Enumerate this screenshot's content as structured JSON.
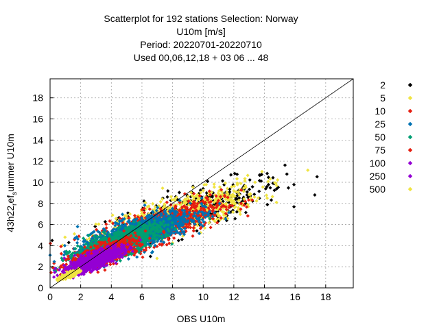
{
  "chart_data": {
    "type": "scatter",
    "title_lines": [
      "Scatterplot for  192 stations Selection: Norway",
      "U10m [m/s]",
      "Period: 20220701-20220710",
      "Used  00,06,12,18 + 03 06 ... 48"
    ],
    "xlabel": "OBS U10m",
    "ylabel_parts": {
      "base": "43h22",
      "sub1": "r",
      "mid": "ef",
      "sub2": "s",
      "tail": "ummer U10m"
    },
    "xlim": [
      0,
      19.8
    ],
    "ylim": [
      0,
      19.8
    ],
    "x_ticks": [
      "0",
      "2",
      "4",
      "6",
      "8",
      "10",
      "12",
      "14",
      "16",
      "18"
    ],
    "y_ticks": [
      "0",
      "2",
      "4",
      "6",
      "8",
      "10",
      "12",
      "14",
      "16",
      "18"
    ],
    "grid": true,
    "diagonal_line": true,
    "legend_position": "right",
    "legend": [
      {
        "label": "2",
        "color": "#000000"
      },
      {
        "label": "5",
        "color": "#f0e442"
      },
      {
        "label": "10",
        "color": "#e51e10"
      },
      {
        "label": "25",
        "color": "#0072b2"
      },
      {
        "label": "50",
        "color": "#009e73"
      },
      {
        "label": "75",
        "color": "#e51e10"
      },
      {
        "label": "100",
        "color": "#9400d3"
      },
      {
        "label": "250",
        "color": "#9400d3"
      },
      {
        "label": "500",
        "color": "#f0e442"
      }
    ],
    "density_layers": [
      {
        "level": "2",
        "color": "#000000",
        "cx": 9.5,
        "cy": 7.5,
        "spread_x": 5.2,
        "spread_y": 3.6,
        "count": 320
      },
      {
        "level": "5",
        "color": "#f0e442",
        "cx": 8.5,
        "cy": 7.0,
        "spread_x": 4.8,
        "spread_y": 3.3,
        "count": 620
      },
      {
        "level": "10",
        "color": "#e51e10",
        "cx": 7.0,
        "cy": 5.8,
        "spread_x": 3.8,
        "spread_y": 2.9,
        "count": 900
      },
      {
        "level": "25",
        "color": "#0072b2",
        "cx": 5.5,
        "cy": 5.0,
        "spread_x": 3.4,
        "spread_y": 2.6,
        "count": 1300
      },
      {
        "level": "50",
        "color": "#009e73",
        "cx": 4.3,
        "cy": 4.1,
        "spread_x": 2.6,
        "spread_y": 2.1,
        "count": 1100
      },
      {
        "level": "75",
        "color": "#e51e10",
        "cx": 3.5,
        "cy": 3.2,
        "spread_x": 2.0,
        "spread_y": 1.7,
        "count": 800
      },
      {
        "level": "100",
        "color": "#9400d3",
        "cx": 3.0,
        "cy": 2.7,
        "spread_x": 1.6,
        "spread_y": 1.3,
        "count": 700
      },
      {
        "level": "250",
        "color": "#9400d3",
        "cx": 2.3,
        "cy": 2.0,
        "spread_x": 1.1,
        "spread_y": 0.9,
        "count": 400
      },
      {
        "level": "500",
        "color": "#f0e442",
        "cx": 1.2,
        "cy": 1.2,
        "spread_x": 0.6,
        "spread_y": 0.5,
        "count": 120
      }
    ]
  }
}
